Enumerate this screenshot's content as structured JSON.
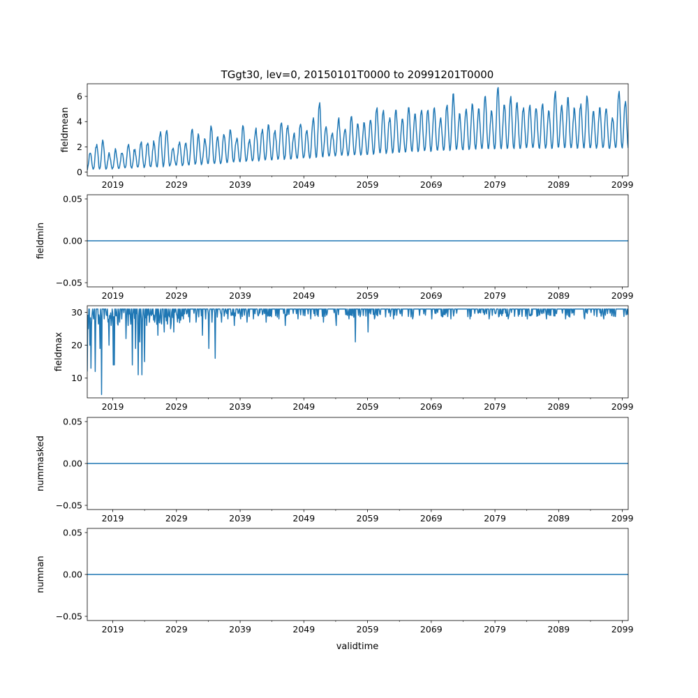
{
  "title": "TGgt30, lev=0, 20150101T0000 to 20991201T0000",
  "xlabel": "validtime",
  "line_color": "#1f77b4",
  "x_ticks": [
    "2019",
    "2029",
    "2039",
    "2049",
    "2059",
    "2069",
    "2079",
    "2089",
    "2099"
  ],
  "chart_data": [
    {
      "type": "line",
      "ylabel": "fieldmean",
      "x": [
        "2015-01",
        "2099-12"
      ],
      "xlim": [
        "2015-01",
        "2099-12"
      ],
      "ylim": [
        -0.3,
        7.0
      ],
      "yticks": [
        "0",
        "2",
        "4",
        "6"
      ],
      "ytick_values": [
        0,
        2,
        4,
        6
      ],
      "series": [
        {
          "description": "monthly field mean; seasonal cycle with amplitude growing over time",
          "summer_peaks": [
            {
              "year": 2015,
              "value": 1.5
            },
            {
              "year": 2016,
              "value": 2.2
            },
            {
              "year": 2017,
              "value": 2.4
            },
            {
              "year": 2018,
              "value": 1.4
            },
            {
              "year": 2019,
              "value": 1.7
            },
            {
              "year": 2020,
              "value": 1.5
            },
            {
              "year": 2021,
              "value": 2.2
            },
            {
              "year": 2022,
              "value": 1.8
            },
            {
              "year": 2023,
              "value": 2.4
            },
            {
              "year": 2024,
              "value": 2.3
            },
            {
              "year": 2025,
              "value": 2.3
            },
            {
              "year": 2026,
              "value": 3.2
            },
            {
              "year": 2027,
              "value": 3.3
            },
            {
              "year": 2028,
              "value": 1.9
            },
            {
              "year": 2029,
              "value": 2.4
            },
            {
              "year": 2030,
              "value": 2.3
            },
            {
              "year": 2031,
              "value": 3.4
            },
            {
              "year": 2032,
              "value": 2.9
            },
            {
              "year": 2033,
              "value": 2.6
            },
            {
              "year": 2034,
              "value": 3.5
            },
            {
              "year": 2035,
              "value": 2.8
            },
            {
              "year": 2036,
              "value": 2.9
            },
            {
              "year": 2037,
              "value": 3.3
            },
            {
              "year": 2038,
              "value": 2.7
            },
            {
              "year": 2039,
              "value": 3.6
            },
            {
              "year": 2040,
              "value": 2.6
            },
            {
              "year": 2041,
              "value": 3.5
            },
            {
              "year": 2042,
              "value": 3.4
            },
            {
              "year": 2043,
              "value": 3.7
            },
            {
              "year": 2044,
              "value": 3.3
            },
            {
              "year": 2045,
              "value": 3.9
            },
            {
              "year": 2046,
              "value": 3.7
            },
            {
              "year": 2047,
              "value": 3.1
            },
            {
              "year": 2048,
              "value": 3.8
            },
            {
              "year": 2049,
              "value": 3.3
            },
            {
              "year": 2050,
              "value": 4.3
            },
            {
              "year": 2051,
              "value": 5.5
            },
            {
              "year": 2052,
              "value": 3.6
            },
            {
              "year": 2053,
              "value": 3.1
            },
            {
              "year": 2054,
              "value": 4.3
            },
            {
              "year": 2055,
              "value": 3.4
            },
            {
              "year": 2056,
              "value": 4.4
            },
            {
              "year": 2057,
              "value": 3.8
            },
            {
              "year": 2058,
              "value": 3.9
            },
            {
              "year": 2059,
              "value": 4.1
            },
            {
              "year": 2060,
              "value": 5.1
            },
            {
              "year": 2061,
              "value": 4.9
            },
            {
              "year": 2062,
              "value": 4.3
            },
            {
              "year": 2063,
              "value": 4.9
            },
            {
              "year": 2064,
              "value": 4.2
            },
            {
              "year": 2065,
              "value": 5.1
            },
            {
              "year": 2066,
              "value": 4.6
            },
            {
              "year": 2067,
              "value": 4.9
            },
            {
              "year": 2068,
              "value": 4.9
            },
            {
              "year": 2069,
              "value": 5.1
            },
            {
              "year": 2070,
              "value": 4.3
            },
            {
              "year": 2071,
              "value": 5.3
            },
            {
              "year": 2072,
              "value": 6.2
            },
            {
              "year": 2073,
              "value": 4.6
            },
            {
              "year": 2074,
              "value": 5.0
            },
            {
              "year": 2075,
              "value": 5.3
            },
            {
              "year": 2076,
              "value": 5.0
            },
            {
              "year": 2077,
              "value": 6.0
            },
            {
              "year": 2078,
              "value": 4.8
            },
            {
              "year": 2079,
              "value": 6.7
            },
            {
              "year": 2080,
              "value": 5.3
            },
            {
              "year": 2081,
              "value": 6.0
            },
            {
              "year": 2082,
              "value": 5.5
            },
            {
              "year": 2083,
              "value": 5.1
            },
            {
              "year": 2084,
              "value": 5.3
            },
            {
              "year": 2085,
              "value": 5.0
            },
            {
              "year": 2086,
              "value": 5.4
            },
            {
              "year": 2087,
              "value": 4.8
            },
            {
              "year": 2088,
              "value": 6.4
            },
            {
              "year": 2089,
              "value": 5.3
            },
            {
              "year": 2090,
              "value": 5.9
            },
            {
              "year": 2091,
              "value": 5.0
            },
            {
              "year": 2092,
              "value": 5.4
            },
            {
              "year": 2093,
              "value": 5.9
            },
            {
              "year": 2094,
              "value": 4.8
            },
            {
              "year": 2095,
              "value": 5.1
            },
            {
              "year": 2096,
              "value": 5.0
            },
            {
              "year": 2097,
              "value": 4.2
            },
            {
              "year": 2098,
              "value": 6.4
            },
            {
              "year": 2099,
              "value": 5.6
            }
          ],
          "winter_troughs": [
            {
              "year": 2015,
              "value": 0.2
            },
            {
              "year": 2025,
              "value": 0.4
            },
            {
              "year": 2035,
              "value": 0.7
            },
            {
              "year": 2045,
              "value": 1.0
            },
            {
              "year": 2055,
              "value": 1.3
            },
            {
              "year": 2065,
              "value": 1.6
            },
            {
              "year": 2075,
              "value": 1.8
            },
            {
              "year": 2085,
              "value": 1.9
            },
            {
              "year": 2099,
              "value": 1.9
            }
          ]
        }
      ]
    },
    {
      "type": "line",
      "ylabel": "fieldmin",
      "xlim": [
        "2015-01",
        "2099-12"
      ],
      "ylim": [
        -0.055,
        0.055
      ],
      "yticks": [
        "−0.05",
        "0.00",
        "0.05"
      ],
      "ytick_values": [
        -0.05,
        0.0,
        0.05
      ],
      "series": [
        {
          "constant": 0.0
        }
      ]
    },
    {
      "type": "line",
      "ylabel": "fieldmax",
      "xlim": [
        "2015-01",
        "2099-12"
      ],
      "ylim": [
        4,
        32
      ],
      "yticks": [
        "10",
        "20",
        "30"
      ],
      "ytick_values": [
        10,
        20,
        30
      ],
      "series": [
        {
          "description": "monthly field max, mostly near 31 with dips that become rarer over time",
          "baseline": 31,
          "dips": [
            {
              "date": "2015-01",
              "value": 12
            },
            {
              "date": "2015-03",
              "value": 25
            },
            {
              "date": "2015-06",
              "value": 20
            },
            {
              "date": "2015-08",
              "value": 13
            },
            {
              "date": "2016-01",
              "value": 28
            },
            {
              "date": "2016-04",
              "value": 12
            },
            {
              "date": "2016-09",
              "value": 31
            },
            {
              "date": "2017-01",
              "value": 19
            },
            {
              "date": "2017-04",
              "value": 5
            },
            {
              "date": "2017-09",
              "value": 28
            },
            {
              "date": "2018-02",
              "value": 29
            },
            {
              "date": "2018-06",
              "value": 20
            },
            {
              "date": "2018-10",
              "value": 26
            },
            {
              "date": "2019-02",
              "value": 14
            },
            {
              "date": "2019-04",
              "value": 14
            },
            {
              "date": "2019-08",
              "value": 29
            },
            {
              "date": "2020-02",
              "value": 27
            },
            {
              "date": "2020-06",
              "value": 28
            },
            {
              "date": "2021-02",
              "value": 22
            },
            {
              "date": "2021-06",
              "value": 26
            },
            {
              "date": "2022-02",
              "value": 14
            },
            {
              "date": "2022-08",
              "value": 19
            },
            {
              "date": "2023-01",
              "value": 11
            },
            {
              "date": "2023-04",
              "value": 21
            },
            {
              "date": "2023-08",
              "value": 11
            },
            {
              "date": "2024-01",
              "value": 15
            },
            {
              "date": "2024-05",
              "value": 26
            },
            {
              "date": "2025-02",
              "value": 29
            },
            {
              "date": "2025-08",
              "value": 27
            },
            {
              "date": "2026-02",
              "value": 23
            },
            {
              "date": "2026-08",
              "value": 27
            },
            {
              "date": "2027-02",
              "value": 24
            },
            {
              "date": "2028-02",
              "value": 25
            },
            {
              "date": "2028-08",
              "value": 24
            },
            {
              "date": "2029-02",
              "value": 29
            },
            {
              "date": "2030-02",
              "value": 28
            },
            {
              "date": "2031-02",
              "value": 27
            },
            {
              "date": "2032-02",
              "value": 27
            },
            {
              "date": "2033-02",
              "value": 23
            },
            {
              "date": "2033-08",
              "value": 28
            },
            {
              "date": "2034-02",
              "value": 19
            },
            {
              "date": "2034-08",
              "value": 27
            },
            {
              "date": "2035-02",
              "value": 16
            },
            {
              "date": "2036-02",
              "value": 27
            },
            {
              "date": "2037-02",
              "value": 28
            },
            {
              "date": "2038-02",
              "value": 26
            },
            {
              "date": "2039-02",
              "value": 28
            },
            {
              "date": "2040-02",
              "value": 27
            },
            {
              "date": "2041-02",
              "value": 28
            },
            {
              "date": "2043-02",
              "value": 27
            },
            {
              "date": "2045-02",
              "value": 28
            },
            {
              "date": "2046-02",
              "value": 26
            },
            {
              "date": "2048-02",
              "value": 28
            },
            {
              "date": "2050-02",
              "value": 28
            },
            {
              "date": "2052-02",
              "value": 27
            },
            {
              "date": "2054-02",
              "value": 26
            },
            {
              "date": "2056-02",
              "value": 28
            },
            {
              "date": "2057-02",
              "value": 21
            },
            {
              "date": "2059-02",
              "value": 24
            },
            {
              "date": "2060-02",
              "value": 28
            },
            {
              "date": "2063-02",
              "value": 28
            },
            {
              "date": "2066-02",
              "value": 28
            },
            {
              "date": "2069-02",
              "value": 28
            },
            {
              "date": "2072-02",
              "value": 28
            },
            {
              "date": "2075-02",
              "value": 28
            },
            {
              "date": "2078-02",
              "value": 28
            },
            {
              "date": "2081-02",
              "value": 28
            },
            {
              "date": "2084-02",
              "value": 28
            },
            {
              "date": "2087-02",
              "value": 28
            },
            {
              "date": "2090-02",
              "value": 28
            },
            {
              "date": "2093-02",
              "value": 28
            },
            {
              "date": "2096-02",
              "value": 28
            }
          ]
        }
      ]
    },
    {
      "type": "line",
      "ylabel": "nummasked",
      "xlim": [
        "2015-01",
        "2099-12"
      ],
      "ylim": [
        -0.055,
        0.055
      ],
      "yticks": [
        "−0.05",
        "0.00",
        "0.05"
      ],
      "ytick_values": [
        -0.05,
        0.0,
        0.05
      ],
      "series": [
        {
          "constant": 0.0
        }
      ]
    },
    {
      "type": "line",
      "ylabel": "numnan",
      "xlim": [
        "2015-01",
        "2099-12"
      ],
      "ylim": [
        -0.055,
        0.055
      ],
      "yticks": [
        "−0.05",
        "0.00",
        "0.05"
      ],
      "ytick_values": [
        -0.05,
        0.0,
        0.05
      ],
      "series": [
        {
          "constant": 0.0
        }
      ]
    }
  ]
}
